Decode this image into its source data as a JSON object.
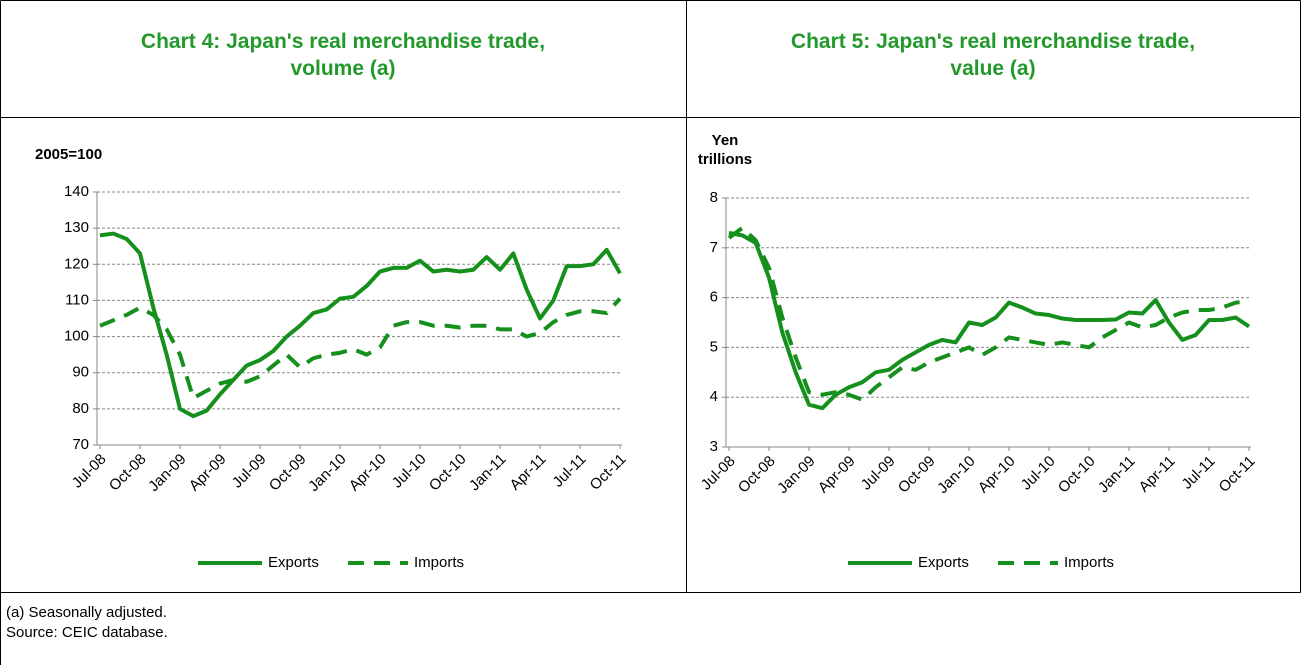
{
  "chart_data": [
    {
      "type": "line",
      "title": "Chart 4: Japan's real merchandise trade, volume (a)",
      "y_label": "2005=100",
      "categories": [
        "Jul-08",
        null,
        null,
        "Oct-08",
        null,
        null,
        "Jan-09",
        null,
        null,
        "Apr-09",
        null,
        null,
        "Jul-09",
        null,
        null,
        "Oct-09",
        null,
        null,
        "Jan-10",
        null,
        null,
        "Apr-10",
        null,
        null,
        "Jul-10",
        null,
        null,
        "Oct-10",
        null,
        null,
        "Jan-11",
        null,
        null,
        "Apr-11",
        null,
        null,
        "Jul-11",
        null,
        null,
        "Oct-11"
      ],
      "series": [
        {
          "name": "Exports",
          "color": "#16901c",
          "dash": false,
          "values": [
            128,
            128.5,
            127,
            123,
            108,
            95,
            80,
            78,
            79.5,
            84,
            88,
            92,
            93.5,
            96,
            100,
            103,
            106.5,
            107.5,
            110.5,
            111,
            114,
            118,
            119,
            119,
            121,
            118,
            118.5,
            118,
            118.5,
            122,
            118.5,
            123,
            113,
            105,
            110,
            119.5,
            119.5,
            120,
            124,
            117.5
          ]
        },
        {
          "name": "Imports",
          "color": "#16901c",
          "dash": true,
          "values": [
            103,
            104.5,
            106,
            108,
            106,
            102,
            95,
            83,
            85,
            87,
            88,
            87.5,
            89,
            92,
            95,
            91.5,
            94,
            95,
            95.5,
            96.5,
            95,
            97,
            103,
            104,
            104,
            103,
            103,
            102.5,
            103,
            103,
            102,
            102,
            100,
            101,
            104,
            106,
            107,
            107,
            106.5,
            110.5
          ]
        }
      ],
      "ylim": [
        70,
        140
      ],
      "yticks": [
        70,
        80,
        90,
        100,
        110,
        120,
        130,
        140
      ],
      "grid": true
    },
    {
      "type": "line",
      "title": "Chart 5: Japan's real merchandise trade, value (a)",
      "y_label": "Yen trillions",
      "categories": [
        "Jul-08",
        null,
        null,
        "Oct-08",
        null,
        null,
        "Jan-09",
        null,
        null,
        "Apr-09",
        null,
        null,
        "Jul-09",
        null,
        null,
        "Oct-09",
        null,
        null,
        "Jan-10",
        null,
        null,
        "Apr-10",
        null,
        null,
        "Jul-10",
        null,
        null,
        "Oct-10",
        null,
        null,
        "Jan-11",
        null,
        null,
        "Apr-11",
        null,
        null,
        "Jul-11",
        null,
        null,
        "Oct-11"
      ],
      "series": [
        {
          "name": "Exports",
          "color": "#16901c",
          "dash": false,
          "values": [
            7.3,
            7.25,
            7.1,
            6.4,
            5.3,
            4.5,
            3.85,
            3.78,
            4.05,
            4.2,
            4.3,
            4.5,
            4.55,
            4.75,
            4.9,
            5.05,
            5.15,
            5.1,
            5.5,
            5.45,
            5.6,
            5.9,
            5.8,
            5.68,
            5.65,
            5.58,
            5.55,
            5.55,
            5.55,
            5.56,
            5.7,
            5.68,
            5.95,
            5.5,
            5.15,
            5.25,
            5.55,
            5.55,
            5.6,
            5.42
          ]
        },
        {
          "name": "Imports",
          "color": "#16901c",
          "dash": true,
          "values": [
            7.2,
            7.4,
            7.15,
            6.6,
            5.6,
            4.8,
            4.1,
            4.05,
            4.1,
            4.05,
            3.95,
            4.2,
            4.4,
            4.6,
            4.55,
            4.7,
            4.8,
            4.9,
            5.0,
            4.85,
            5.0,
            5.2,
            5.15,
            5.1,
            5.05,
            5.1,
            5.05,
            5.0,
            5.2,
            5.35,
            5.5,
            5.4,
            5.45,
            5.6,
            5.7,
            5.75,
            5.75,
            5.8,
            5.9,
            5.92
          ]
        }
      ],
      "ylim": [
        3,
        8
      ],
      "yticks": [
        3,
        4,
        5,
        6,
        7,
        8
      ],
      "grid": true
    }
  ],
  "notes": [
    "(a) Seasonally adjusted.",
    "Source: CEIC database."
  ]
}
